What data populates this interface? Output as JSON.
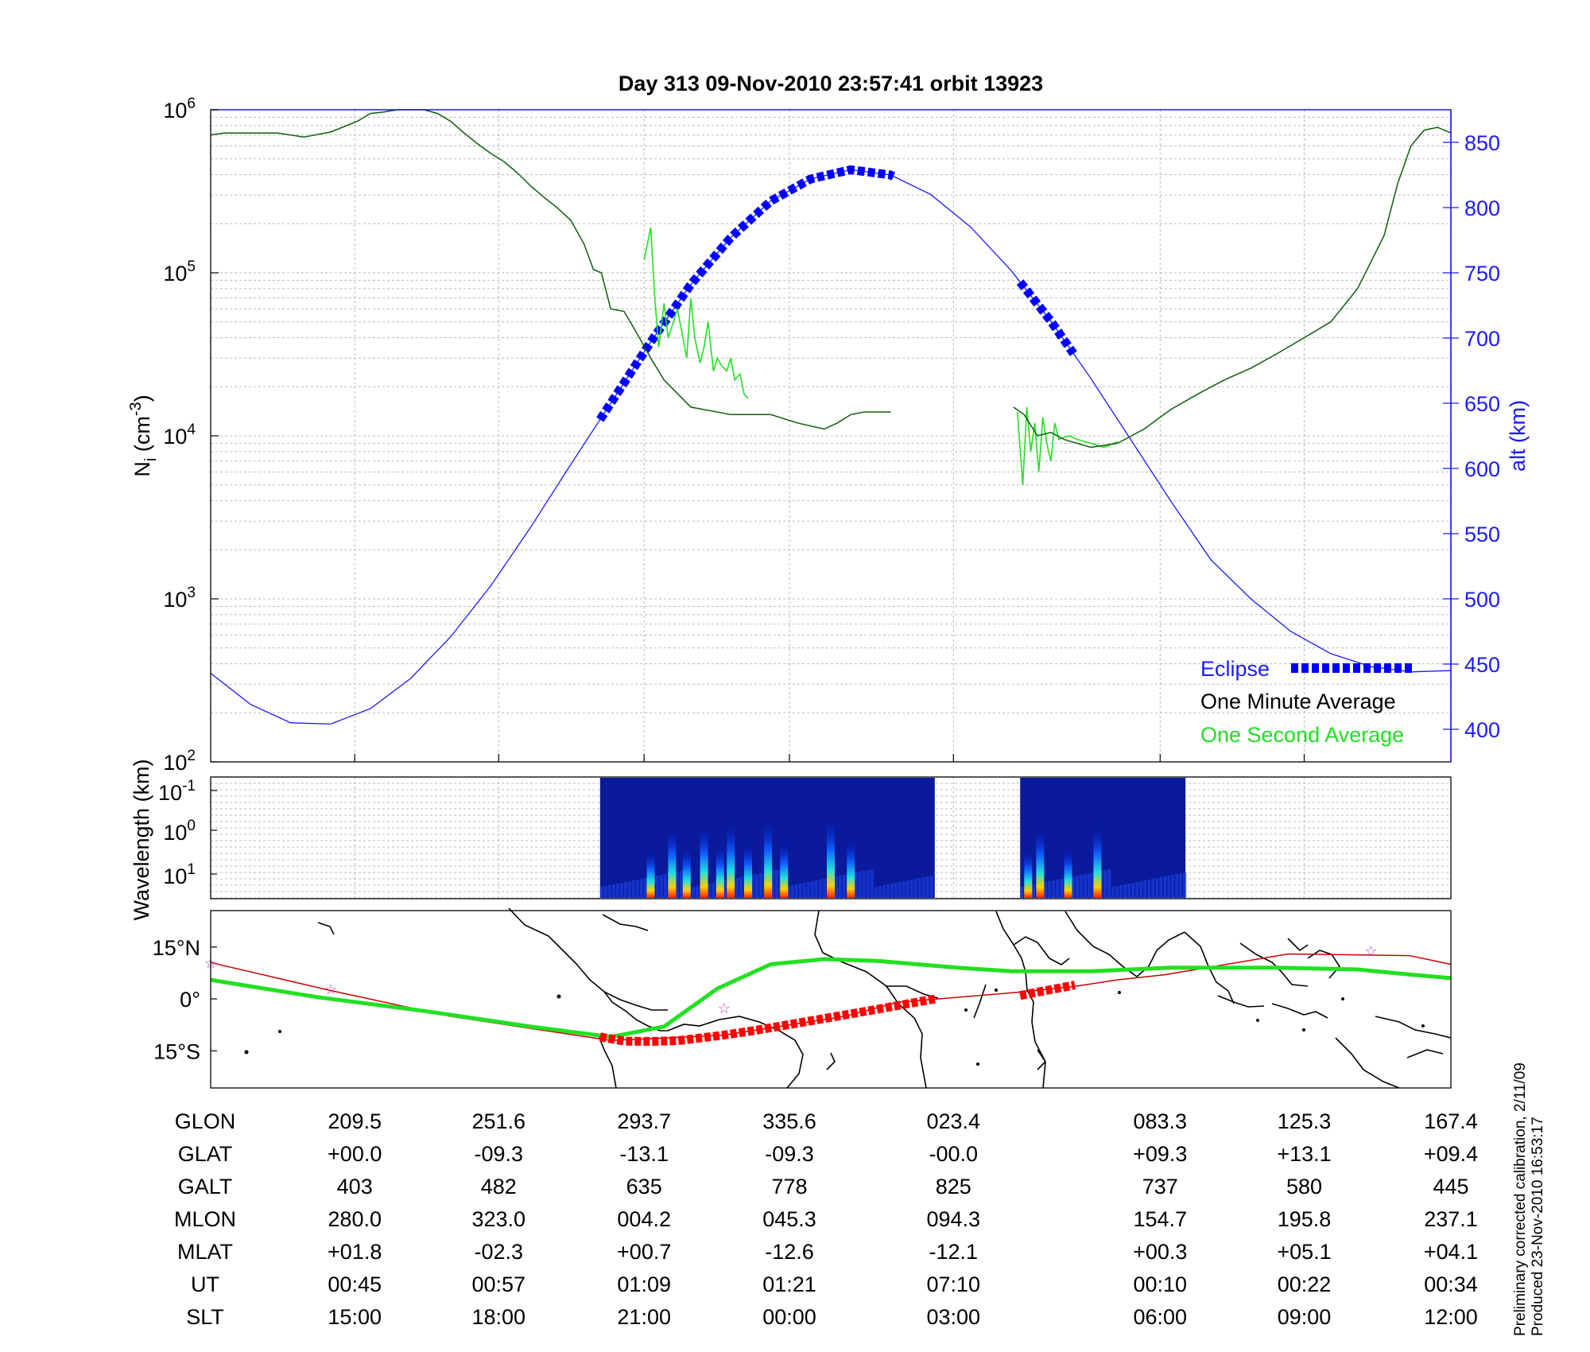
{
  "title": "Day 313  09-Nov-2010 23:57:41   orbit 13923",
  "footnote": {
    "line1": "Preliminary corrected calibration, 2/11/09",
    "line2": "Produced 23-Nov-2010 16:53:17"
  },
  "colors": {
    "alt_axis": "#1a1aff",
    "minute_avg": "#0b5e0b",
    "second_avg": "#22e022",
    "eclipse": "#0000ff",
    "map_eclipse": "#ff0000",
    "orbit_track": "#cc0000",
    "magnetic_equator": "#22e022",
    "star": "#c040c0"
  },
  "chart_data": [
    {
      "type": "line",
      "panel": "ion density / altitude",
      "ylabel_left": "N_i (cm^-3)",
      "ylabel_right": "alt (km)",
      "y_scale_left": "log",
      "ylim_left": [
        100,
        1000000
      ],
      "yticks_left": [
        {
          "base": "10",
          "exp": "2",
          "value": 100
        },
        {
          "base": "10",
          "exp": "3",
          "value": 1000
        },
        {
          "base": "10",
          "exp": "4",
          "value": 10000
        },
        {
          "base": "10",
          "exp": "5",
          "value": 100000
        },
        {
          "base": "10",
          "exp": "6",
          "value": 1000000
        }
      ],
      "ylim_right": [
        375,
        875
      ],
      "yticks_right": [
        "400",
        "450",
        "500",
        "550",
        "600",
        "650",
        "700",
        "750",
        "800",
        "850"
      ],
      "x_unit": "minutes from start of pass",
      "xlim": [
        0,
        93
      ],
      "grid": true,
      "legend": {
        "position": "bottom-right",
        "entries": [
          "Eclipse",
          "One Minute Average",
          "One Second Average"
        ]
      },
      "series": [
        {
          "name": "One Minute Average",
          "axis": "left",
          "x": [
            0,
            1,
            3,
            5,
            7,
            9,
            11,
            12,
            13,
            14,
            15,
            16,
            17,
            18,
            19,
            20,
            21,
            22,
            23,
            24,
            25,
            26,
            27,
            28,
            28.7,
            29.3,
            30,
            31,
            32,
            33,
            34,
            36,
            39,
            42,
            44,
            46,
            47,
            48,
            49,
            50,
            51
          ],
          "y": [
            700000,
            720000,
            720000,
            720000,
            680000,
            730000,
            850000,
            950000,
            970000,
            1000000,
            1000000,
            1000000,
            950000,
            850000,
            720000,
            620000,
            540000,
            480000,
            410000,
            340000,
            290000,
            250000,
            210000,
            150000,
            105000,
            100000,
            60000,
            58000,
            42000,
            30000,
            22000,
            15000,
            13500,
            13500,
            12000,
            11000,
            12000,
            13500,
            14000,
            14000,
            14000
          ]
        },
        {
          "name": "One Minute Average",
          "axis": "left",
          "x": [
            60.2,
            61,
            62,
            63,
            64,
            66,
            68,
            70,
            72,
            74,
            76,
            78,
            80,
            82,
            84,
            86,
            88,
            89,
            90,
            91,
            92,
            93
          ],
          "y": [
            15000,
            13500,
            10000,
            10500,
            9500,
            8500,
            9000,
            11000,
            14500,
            18000,
            22000,
            26000,
            32000,
            40000,
            50000,
            80000,
            170000,
            350000,
            600000,
            750000,
            780000,
            720000
          ]
        },
        {
          "name": "One Second Average",
          "axis": "left",
          "segments": [
            {
              "x": [
                32.5,
                33,
                33.3,
                33.6,
                34,
                34.3,
                34.7,
                35,
                35.3,
                35.7,
                36,
                36.3,
                36.7,
                37,
                37.3,
                37.7,
                38,
                38.3,
                38.7,
                39,
                39.3,
                39.7,
                40,
                40.3
              ],
              "y": [
                120000,
                190000,
                70000,
                35000,
                65000,
                40000,
                50000,
                60000,
                45000,
                30000,
                70000,
                40000,
                28000,
                35000,
                50000,
                25000,
                30000,
                27000,
                25000,
                30000,
                22000,
                24000,
                18000,
                17000
              ]
            },
            {
              "x": [
                60.5,
                60.9,
                61.2,
                61.5,
                61.8,
                62.1,
                62.4,
                62.7,
                63,
                63.3,
                63.6,
                64,
                64.4,
                65,
                66,
                67,
                68
              ],
              "y": [
                14000,
                5000,
                15000,
                8000,
                12000,
                6000,
                13000,
                9000,
                7000,
                12000,
                9500,
                9800,
                10000,
                9500,
                9000,
                8500,
                9200
              ]
            }
          ]
        },
        {
          "name": "alt (km)",
          "axis": "right",
          "x": [
            0,
            3,
            6,
            9,
            12,
            15,
            18,
            21,
            24,
            27,
            30,
            33,
            36,
            39,
            42,
            45,
            48,
            51,
            54,
            57,
            60,
            63,
            66,
            69,
            72,
            75,
            78,
            81,
            84,
            87,
            90,
            93
          ],
          "y": [
            443,
            419,
            405,
            404,
            416,
            439,
            471,
            510,
            555,
            603,
            650,
            697,
            741,
            777,
            805,
            822,
            829,
            825,
            810,
            785,
            752,
            713,
            669,
            622,
            575,
            530,
            500,
            475,
            458,
            448,
            444,
            445
          ]
        },
        {
          "name": "Eclipse",
          "axis": "right",
          "segments": [
            {
              "x": [
                29.2,
                51.3
              ]
            },
            {
              "x": [
                60.7,
                64.8
              ]
            }
          ]
        }
      ]
    },
    {
      "type": "heatmap",
      "panel": "spectrogram",
      "ylabel": "Wavelength (km)",
      "yticks": [
        {
          "base": "10",
          "exp": "-1"
        },
        {
          "base": "10",
          "exp": "0"
        },
        {
          "base": "10",
          "exp": "1"
        }
      ],
      "colorscale": [
        "#00007f",
        "#0000ff",
        "#00ffff",
        "#ffff00",
        "#ff0000",
        "#7f0000"
      ],
      "blocks": [
        {
          "x": [
            29.2,
            54.3
          ],
          "bursts_x": [
            33,
            34.6,
            35.7,
            37,
            38.2,
            39,
            40.3,
            41.8,
            43,
            46.5,
            48
          ]
        },
        {
          "x": [
            60.7,
            73.1
          ],
          "bursts_x": [
            61.3,
            62.2,
            64.3,
            66.5
          ]
        }
      ]
    },
    {
      "type": "line",
      "panel": "map",
      "yticks": [
        "15°N",
        "0°",
        "15°S"
      ],
      "ylim": [
        -25,
        25
      ],
      "xlim": [
        0,
        93
      ],
      "series": [
        {
          "name": "orbit track",
          "x": [
            0,
            8.9,
            17.9,
            28.6,
            30,
            38.4,
            47.6,
            51.5,
            60.8,
            64.8,
            68,
            71.6,
            80.8,
            89.9,
            93
          ],
          "y": [
            10.5,
            2.5,
            -5,
            -11.2,
            -12,
            -10.5,
            -5,
            -1,
            2,
            3.6,
            5.5,
            7,
            13,
            12.5,
            10
          ]
        },
        {
          "name": "magnetic equator",
          "x": [
            0,
            8,
            16,
            24,
            30,
            34,
            38,
            42,
            46,
            50,
            56,
            60,
            66,
            72,
            80,
            86,
            90,
            93
          ],
          "y": [
            5.5,
            0.5,
            -3.5,
            -8,
            -11,
            -8,
            3,
            10,
            11.5,
            11,
            9,
            8,
            8,
            9,
            9,
            8.5,
            7,
            6
          ]
        },
        {
          "name": "eclipse",
          "segments": [
            {
              "x": [
                29.2,
                31,
                33,
                35,
                38.4,
                41,
                44,
                47,
                50,
                54.3
              ],
              "y": [
                -11,
                -12.2,
                -12.3,
                -12.1,
                -10.5,
                -9,
                -7,
                -5,
                -3,
                0
              ]
            },
            {
              "x": [
                60.7,
                64.8
              ],
              "y": [
                1,
                4
              ]
            }
          ]
        },
        {
          "name": "satellite positions",
          "points": [
            {
              "x": 0,
              "y": 10.5
            },
            {
              "x": 9,
              "y": 3
            },
            {
              "x": 38.5,
              "y": -2.5
            },
            {
              "x": 87,
              "y": 14
            }
          ]
        }
      ]
    }
  ],
  "table": {
    "row_labels": [
      "GLON",
      "GLAT",
      "GALT",
      "MLON",
      "MLAT",
      "UT",
      "SLT"
    ],
    "columns": [
      {
        "x": 10.8,
        "values": [
          "209.5",
          "+00.0",
          "403",
          "280.0",
          "+01.8",
          "00:45",
          "15:00"
        ]
      },
      {
        "x": 21.6,
        "values": [
          "251.6",
          "-09.3",
          "482",
          "323.0",
          "-02.3",
          "00:57",
          "18:00"
        ]
      },
      {
        "x": 32.5,
        "values": [
          "293.7",
          "-13.1",
          "635",
          "004.2",
          "+00.7",
          "01:09",
          "21:00"
        ]
      },
      {
        "x": 43.4,
        "values": [
          "335.6",
          "-09.3",
          "778",
          "045.3",
          "-12.6",
          "01:21",
          "00:00"
        ]
      },
      {
        "x": 55.7,
        "values": [
          "023.4",
          "-00.0",
          "825",
          "094.3",
          "-12.1",
          "07:10",
          "03:00"
        ]
      },
      {
        "x": 71.2,
        "values": [
          "083.3",
          "+09.3",
          "737",
          "154.7",
          "+00.3",
          "00:10",
          "06:00"
        ]
      },
      {
        "x": 82.0,
        "values": [
          "125.3",
          "+13.1",
          "580",
          "195.8",
          "+05.1",
          "00:22",
          "09:00"
        ]
      },
      {
        "x": 93.0,
        "values": [
          "167.4",
          "+09.4",
          "445",
          "237.1",
          "+04.1",
          "00:34",
          "12:00"
        ]
      }
    ]
  }
}
